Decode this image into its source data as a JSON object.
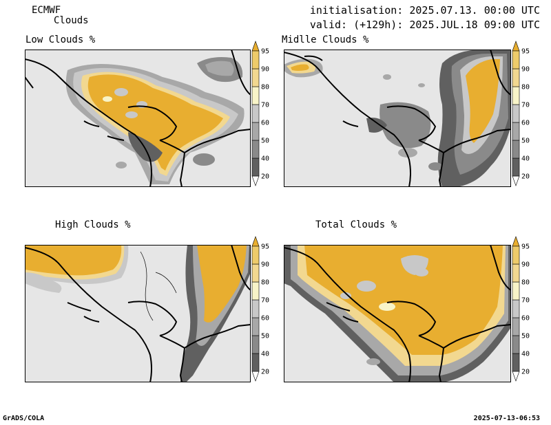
{
  "header": {
    "model": "ECMWF",
    "parameter": "Clouds",
    "initialisation": "initialisation: 2025.07.13. 00:00 UTC",
    "valid": "valid: (+129h): 2025.JUL.18 09:00 UTC"
  },
  "footer": {
    "left": "GrADS/COLA",
    "right": "2025-07-13-06:53"
  },
  "legend": {
    "levels": [
      "20",
      "40",
      "50",
      "60",
      "70",
      "80",
      "90",
      "95"
    ],
    "colors": [
      "#ffffff",
      "#606060",
      "#8a8a8a",
      "#a8a8a8",
      "#c8c8c8",
      "#f8f4c8",
      "#f2d890",
      "#eecb6a",
      "#e8ae30"
    ]
  },
  "panels": [
    {
      "title": "Low Clouds %"
    },
    {
      "title": "Midlle Clouds %"
    },
    {
      "title": "High Clouds %"
    },
    {
      "title": "Total Clouds %"
    }
  ]
}
